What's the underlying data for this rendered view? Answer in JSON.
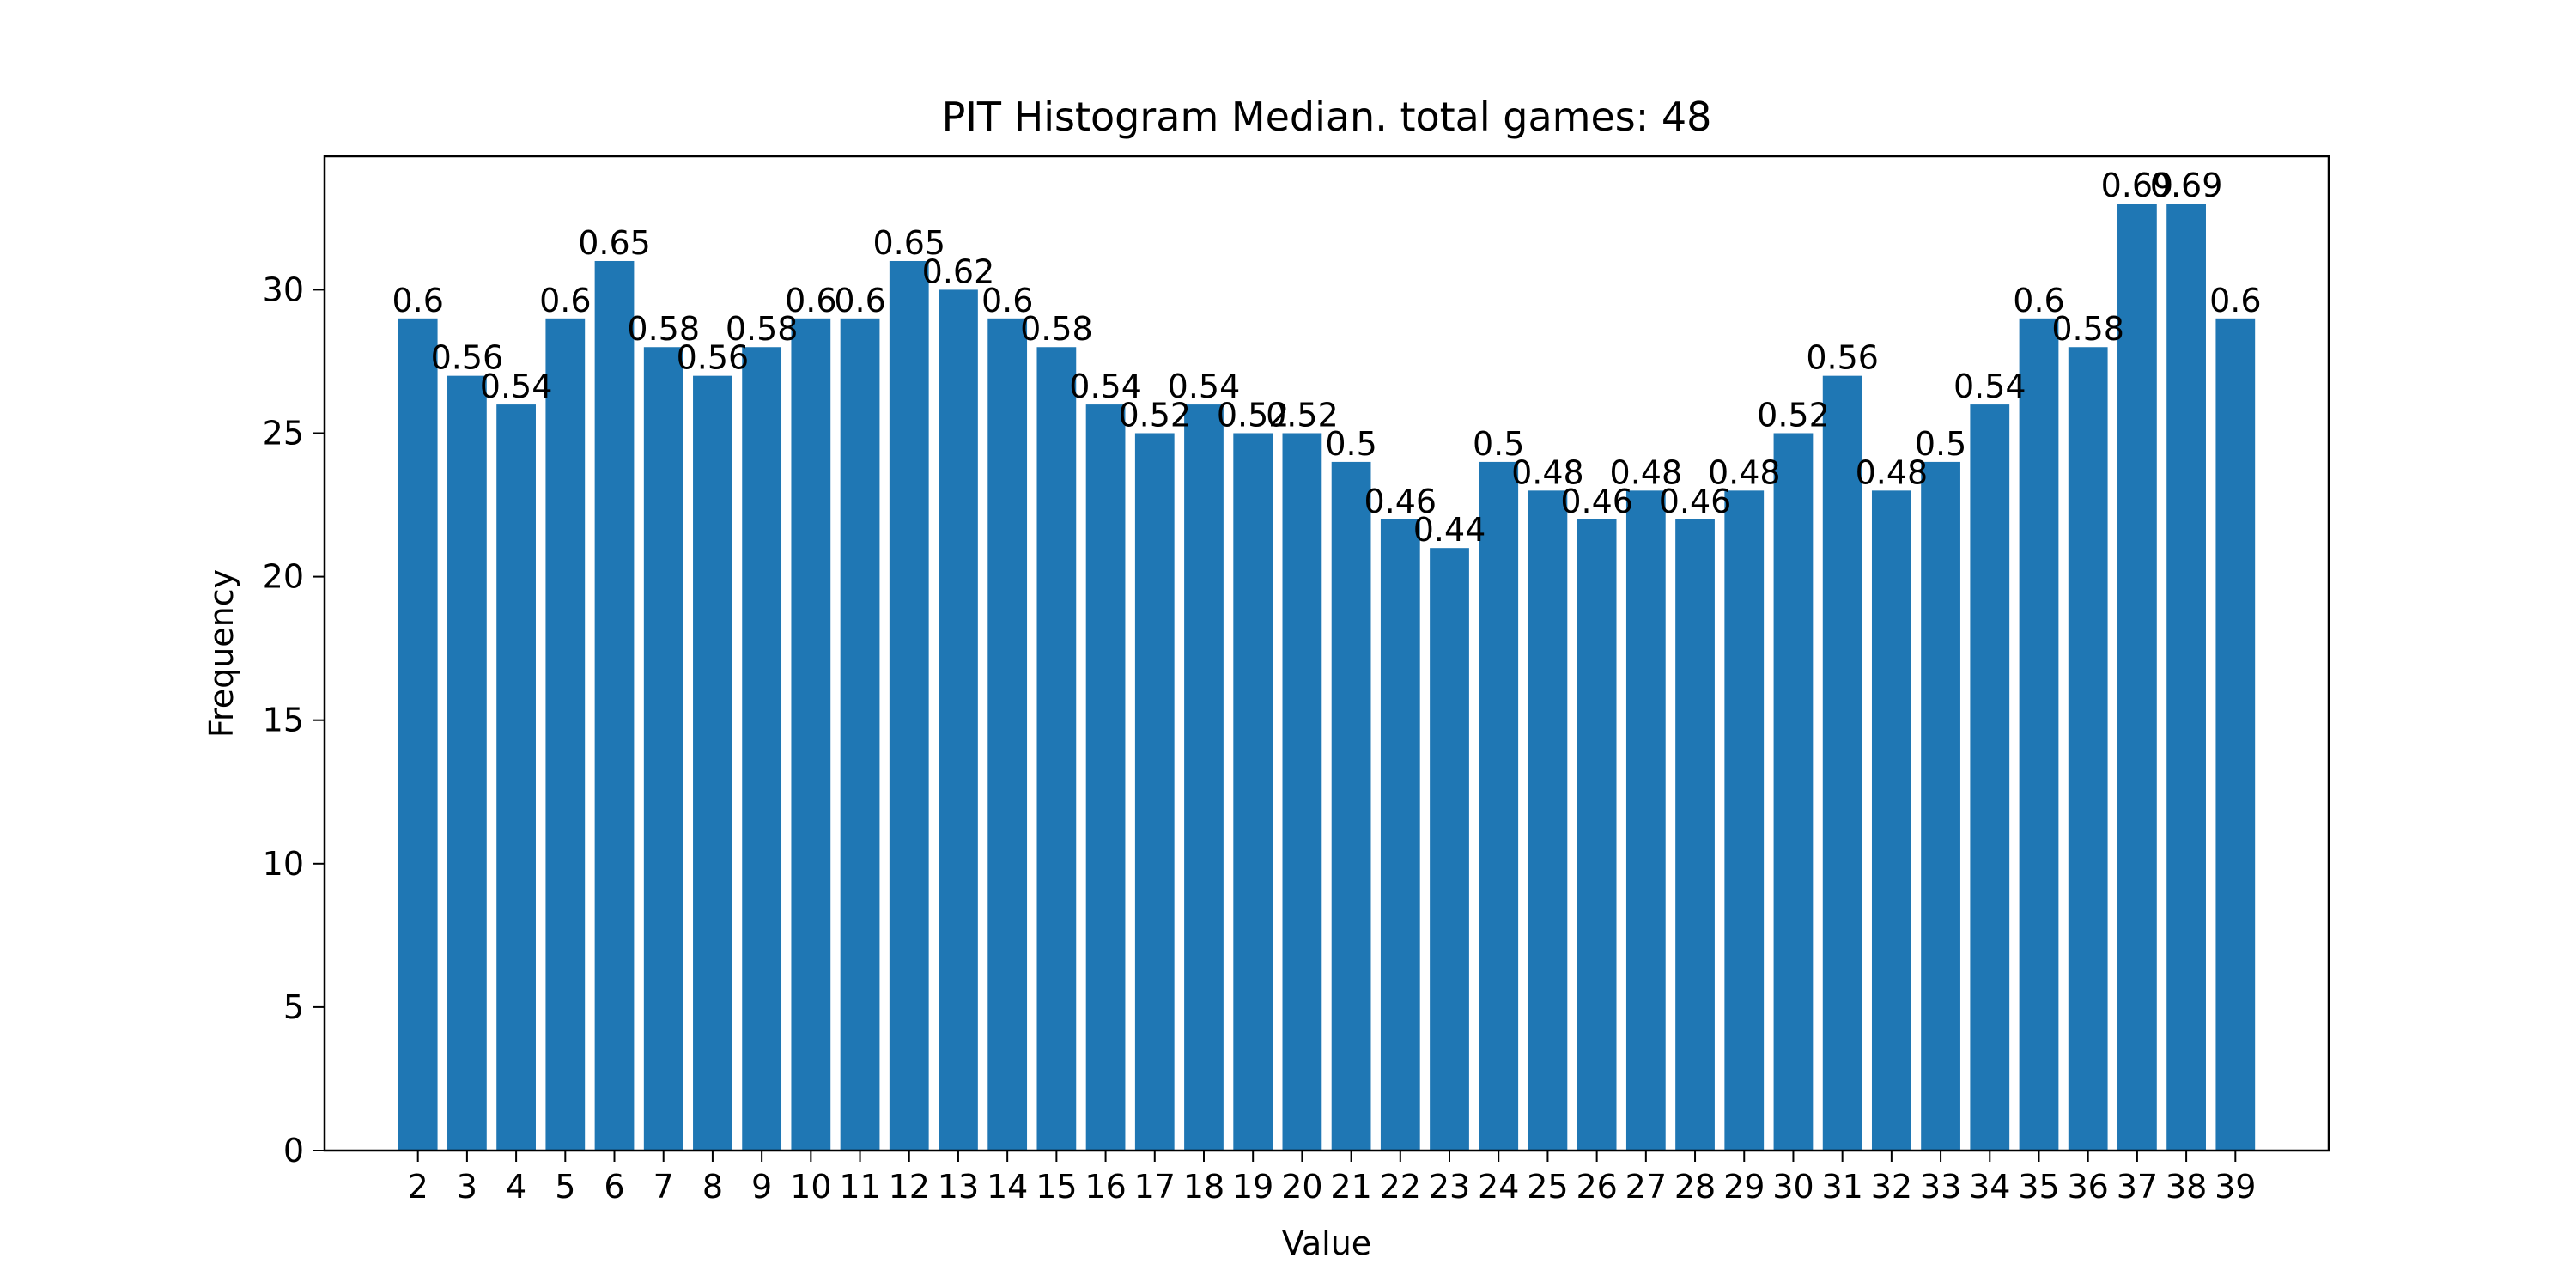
{
  "chart_data": {
    "type": "bar",
    "title": "PIT Histogram Median. total games: 48",
    "xlabel": "Value",
    "ylabel": "Frequency",
    "ylim": [
      0,
      34.65
    ],
    "yticks": [
      0,
      5,
      10,
      15,
      20,
      25,
      30
    ],
    "grid": false,
    "bar_color": "#1f77b4",
    "categories": [
      "2",
      "3",
      "4",
      "5",
      "6",
      "7",
      "8",
      "9",
      "10",
      "11",
      "12",
      "13",
      "14",
      "15",
      "16",
      "17",
      "18",
      "19",
      "20",
      "21",
      "22",
      "23",
      "24",
      "25",
      "26",
      "27",
      "28",
      "29",
      "30",
      "31",
      "32",
      "33",
      "34",
      "35",
      "36",
      "37",
      "38",
      "39"
    ],
    "values": [
      29,
      27,
      26,
      29,
      31,
      28,
      27,
      28,
      29,
      29,
      31,
      30,
      29,
      28,
      26,
      25,
      26,
      25,
      25,
      24,
      22,
      21,
      24,
      23,
      22,
      23,
      22,
      23,
      25,
      27,
      23,
      24,
      26,
      29,
      28,
      33,
      33,
      29
    ],
    "data_labels": [
      "0.6",
      "0.56",
      "0.54",
      "0.6",
      "0.65",
      "0.58",
      "0.56",
      "0.58",
      "0.6",
      "0.6",
      "0.65",
      "0.62",
      "0.6",
      "0.58",
      "0.54",
      "0.52",
      "0.54",
      "0.52",
      "0.52",
      "0.5",
      "0.46",
      "0.44",
      "0.5",
      "0.48",
      "0.46",
      "0.48",
      "0.46",
      "0.48",
      "0.52",
      "0.56",
      "0.48",
      "0.5",
      "0.54",
      "0.6",
      "0.58",
      "0.69",
      "0.69",
      "0.6"
    ]
  }
}
